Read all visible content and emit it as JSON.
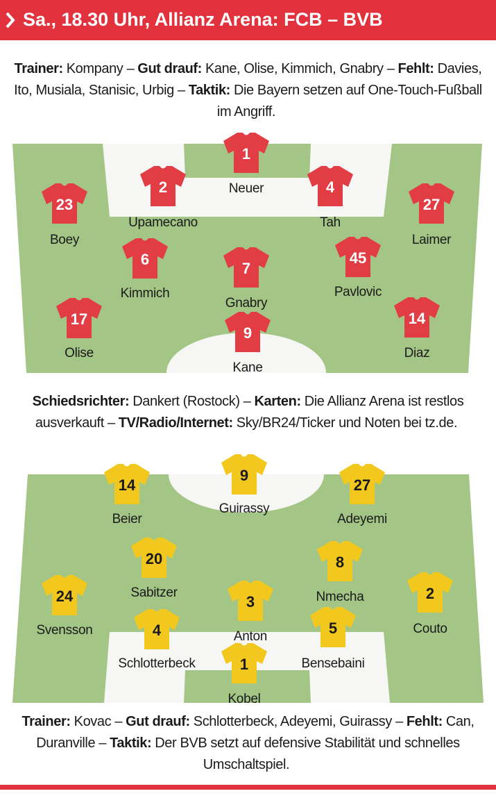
{
  "header": {
    "title": "Sa., 18.30 Uhr, Allianz Arena: FCB – BVB"
  },
  "home": {
    "info": [
      {
        "label": "Trainer:",
        "text": "Kompany –"
      },
      {
        "label": "Gut drauf:",
        "text": "Kane, Olise, Kimmich, Gnabry –"
      },
      {
        "label": "Fehlt:",
        "text": "Davies, Ito, Musiala, Stanisic, Urbig –"
      },
      {
        "label": "Taktik:",
        "text": "Die Bayern setzen auf One-Touch-Fußball im Angriff."
      }
    ],
    "players": [
      {
        "number": 1,
        "name": "Neuer"
      },
      {
        "number": 2,
        "name": "Upamecano"
      },
      {
        "number": 4,
        "name": "Tah"
      },
      {
        "number": 23,
        "name": "Boey"
      },
      {
        "number": 27,
        "name": "Laimer"
      },
      {
        "number": 6,
        "name": "Kimmich"
      },
      {
        "number": 7,
        "name": "Gnabry"
      },
      {
        "number": 45,
        "name": "Pavlovic"
      },
      {
        "number": 17,
        "name": "Olise"
      },
      {
        "number": 9,
        "name": "Kane"
      },
      {
        "number": 14,
        "name": "Diaz"
      }
    ]
  },
  "match_info": [
    {
      "label": "Schiedsrichter:",
      "text": "Dankert (Rostock) –"
    },
    {
      "label": "Karten:",
      "text": "Die Allianz Arena ist restlos ausverkauft –"
    },
    {
      "label": "TV/Radio/Internet:",
      "text": "Sky/BR24/Ticker und Noten bei tz.de."
    }
  ],
  "away": {
    "players": [
      {
        "number": 9,
        "name": "Guirassy"
      },
      {
        "number": 14,
        "name": "Beier"
      },
      {
        "number": 27,
        "name": "Adeyemi"
      },
      {
        "number": 20,
        "name": "Sabitzer"
      },
      {
        "number": 8,
        "name": "Nmecha"
      },
      {
        "number": 24,
        "name": "Svensson"
      },
      {
        "number": 3,
        "name": "Anton"
      },
      {
        "number": 2,
        "name": "Couto"
      },
      {
        "number": 4,
        "name": "Schlotterbeck"
      },
      {
        "number": 5,
        "name": "Bensebaini"
      },
      {
        "number": 1,
        "name": "Kobel"
      }
    ],
    "info": [
      {
        "label": "Trainer:",
        "text": "Kovac –"
      },
      {
        "label": "Gut drauf:",
        "text": "Schlotterbeck, Adeyemi, Guirassy –"
      },
      {
        "label": "Fehlt:",
        "text": "Can, Duranville –"
      },
      {
        "label": "Taktik:",
        "text": "Der BVB setzt auf defensive Stabilität und schnelles Umschaltspiel."
      }
    ]
  }
}
